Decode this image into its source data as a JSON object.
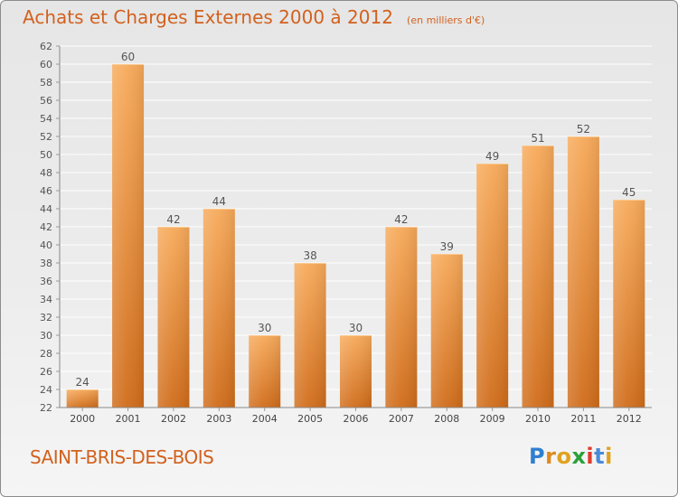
{
  "title": "Achats et Charges Externes 2000 à 2012",
  "subtitle": "(en milliers d'€)",
  "town": "SAINT-BRIS-DES-BOIS",
  "logo": {
    "letters": [
      "P",
      "r",
      "o",
      "x",
      "i",
      "t",
      "i"
    ],
    "colors": [
      "#2f7fd1",
      "#e08a1e",
      "#e0a21e",
      "#2aa13a",
      "#e03a2a",
      "#4a8ad8",
      "#e0a21e"
    ]
  },
  "colors": {
    "bar_top": "#f7aa5a",
    "bar_bottom": "#d06c1a",
    "grid": "#ffffff",
    "text": "#555555",
    "accent": "#d2611e"
  },
  "chart_data": {
    "type": "bar",
    "categories": [
      "2000",
      "2001",
      "2002",
      "2003",
      "2004",
      "2005",
      "2006",
      "2007",
      "2008",
      "2009",
      "2010",
      "2011",
      "2012"
    ],
    "values": [
      24,
      60,
      42,
      44,
      30,
      38,
      30,
      42,
      39,
      49,
      51,
      52,
      45
    ],
    "ylim": [
      22,
      62
    ],
    "yticks": [
      22,
      24,
      26,
      28,
      30,
      32,
      34,
      36,
      38,
      40,
      42,
      44,
      46,
      48,
      50,
      52,
      54,
      56,
      58,
      60,
      62
    ],
    "grid": true
  }
}
